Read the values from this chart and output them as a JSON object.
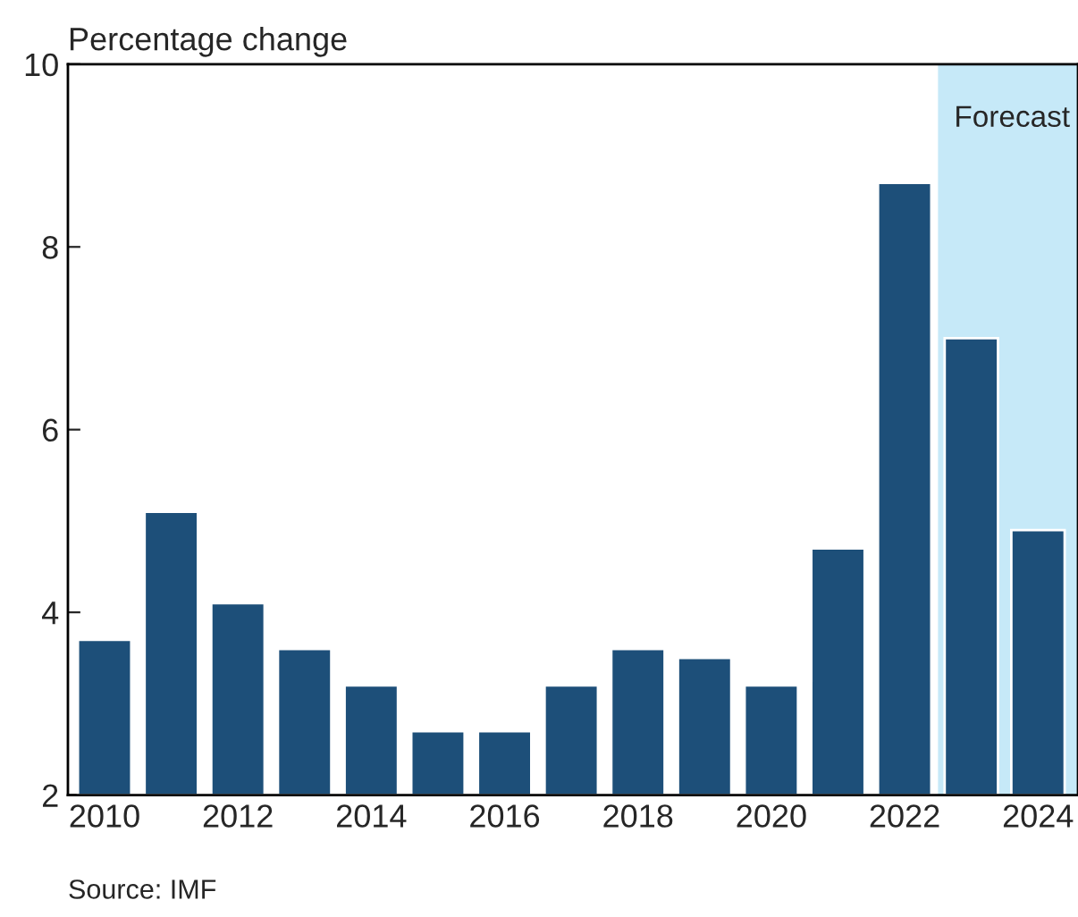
{
  "chart_data": {
    "type": "bar",
    "ylabel": "Percentage change",
    "x": [
      2010,
      2011,
      2012,
      2013,
      2014,
      2015,
      2016,
      2017,
      2018,
      2019,
      2020,
      2021,
      2022,
      2023,
      2024
    ],
    "values": [
      3.7,
      5.1,
      4.1,
      3.6,
      3.2,
      2.7,
      2.7,
      3.2,
      3.6,
      3.5,
      3.2,
      4.7,
      8.7,
      7.0,
      4.9
    ],
    "color": "#1d4f79",
    "xlim": [
      2009.45,
      2024.6
    ],
    "xticks": [
      2010,
      2012,
      2014,
      2016,
      2018,
      2020,
      2022,
      2024
    ],
    "ylim": [
      2,
      10
    ],
    "yticks": [
      2,
      4,
      6,
      8,
      10
    ],
    "bands": [
      {
        "axis": "x",
        "from": 2022.5,
        "to": 2024.6,
        "label": "Forecast",
        "color": "#c6e9f8"
      }
    ],
    "annotations": [
      "Source: IMF"
    ],
    "grid": false,
    "legend": false
  }
}
